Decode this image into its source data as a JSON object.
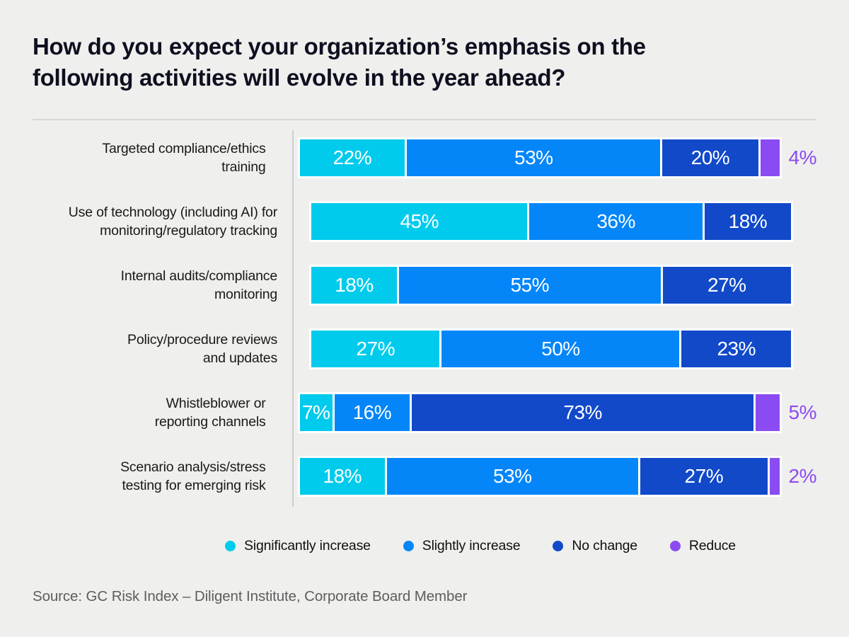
{
  "page": {
    "title_lines": [
      "How do you expect your organization’s emphasis on the",
      "following activities will evolve in the year ahead?"
    ],
    "source": "Source: GC Risk Index – Diligent Institute, Corporate Board Member"
  },
  "colors": {
    "background": "#EFEFED",
    "title_text": "#0E0F1F",
    "row_label_text": "#191919",
    "bar_value_text": "#FFFFFF",
    "source_text": "#5D5D5D",
    "divider": "#D7D7D5",
    "axis_line": "#CFCFCD",
    "bar_border": "#FFFFFF"
  },
  "chart_data": {
    "type": "bar",
    "orientation": "horizontal",
    "stacked": true,
    "normalized_to_full_width": true,
    "value_unit": "%",
    "legend_position": "bottom",
    "title": "How do you expect your organization’s emphasis on the following activities will evolve in the year ahead?",
    "series": [
      {
        "name": "Significantly increase",
        "color": "#01CBEC"
      },
      {
        "name": "Slightly increase",
        "color": "#0486F9"
      },
      {
        "name": "No change",
        "color": "#1149C9"
      },
      {
        "name": "Reduce",
        "color": "#8B4BF2"
      }
    ],
    "categories": [
      "Targeted compliance/ethics training",
      "Use of technology (including AI) for monitoring/regulatory tracking",
      "Internal audits/compliance monitoring",
      "Policy/procedure reviews and updates",
      "Whistleblower or reporting channels",
      "Scenario analysis/stress testing for emerging risk"
    ],
    "rows": [
      {
        "label_lines": [
          "Targeted compliance/ethics",
          "training"
        ],
        "values": [
          22,
          53,
          20,
          4
        ]
      },
      {
        "label_lines": [
          "Use of technology (including AI) for",
          "monitoring/regulatory tracking"
        ],
        "values": [
          45,
          36,
          18,
          null
        ]
      },
      {
        "label_lines": [
          "Internal audits/compliance",
          "monitoring"
        ],
        "values": [
          18,
          55,
          27,
          null
        ]
      },
      {
        "label_lines": [
          "Policy/procedure reviews",
          "and updates"
        ],
        "values": [
          27,
          50,
          23,
          null
        ]
      },
      {
        "label_lines": [
          "Whistleblower or",
          "reporting channels"
        ],
        "values": [
          7,
          16,
          73,
          5
        ]
      },
      {
        "label_lines": [
          "Scenario analysis/stress",
          "testing for emerging risk"
        ],
        "values": [
          18,
          53,
          27,
          2
        ]
      }
    ],
    "reduce_value_label_outside_bar": true
  }
}
